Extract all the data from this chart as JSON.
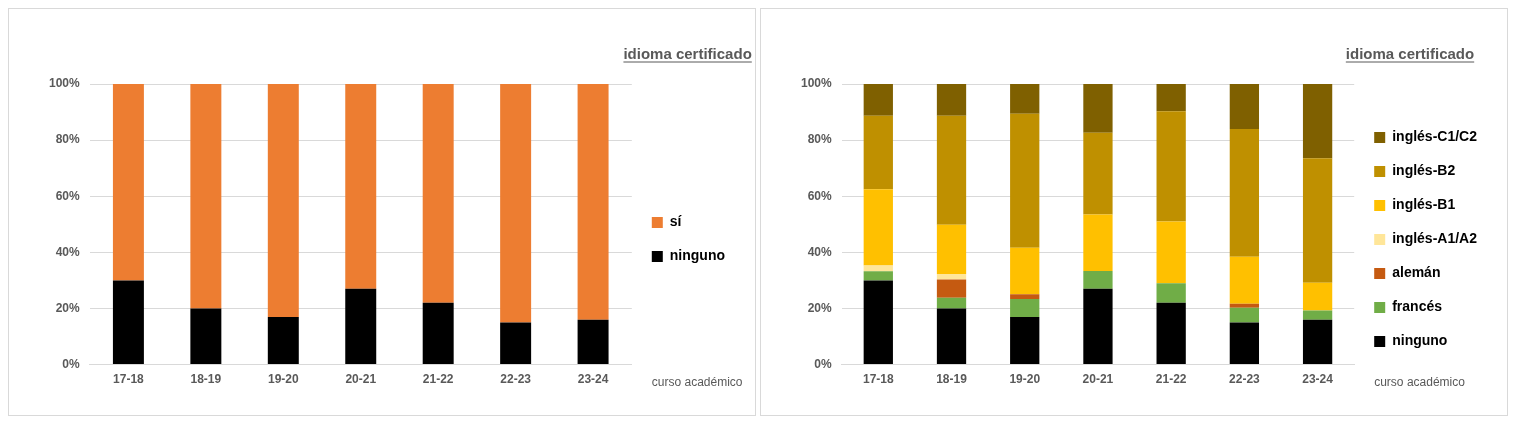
{
  "chart_data": [
    {
      "type": "bar",
      "title": "idioma certificado",
      "xlabel": "curso académico",
      "categories": [
        "17-18",
        "18-19",
        "19-20",
        "20-21",
        "21-22",
        "22-23",
        "23-24"
      ],
      "stacked": true,
      "ylim": [
        0,
        100
      ],
      "yticks": [
        {
          "value": 0,
          "label": "0%"
        },
        {
          "value": 20,
          "label": "20%"
        },
        {
          "value": 40,
          "label": "40%"
        },
        {
          "value": 60,
          "label": "60%"
        },
        {
          "value": 80,
          "label": "80%"
        },
        {
          "value": 100,
          "label": "100%"
        }
      ],
      "grid": "y",
      "legend": "right",
      "series": [
        {
          "name": "ninguno",
          "color": "#000000",
          "values": [
            30,
            20,
            17,
            27,
            22,
            15,
            16
          ]
        },
        {
          "name": "sí",
          "color": "#ed7d31",
          "values": [
            70,
            80,
            83,
            73,
            78,
            85,
            84
          ]
        }
      ]
    },
    {
      "type": "bar",
      "title": "idioma certificado",
      "xlabel": "curso académico",
      "categories": [
        "17-18",
        "18-19",
        "19-20",
        "20-21",
        "21-22",
        "22-23",
        "23-24"
      ],
      "stacked": true,
      "ylim": [
        0,
        100
      ],
      "yticks": [
        {
          "value": 0,
          "label": "0%"
        },
        {
          "value": 20,
          "label": "20%"
        },
        {
          "value": 40,
          "label": "40%"
        },
        {
          "value": 60,
          "label": "60%"
        },
        {
          "value": 80,
          "label": "80%"
        },
        {
          "value": 100,
          "label": "100%"
        }
      ],
      "grid": "y",
      "legend": "right",
      "series": [
        {
          "name": "ninguno",
          "color": "#000000",
          "values": [
            30,
            20,
            17,
            27,
            22,
            15,
            16
          ]
        },
        {
          "name": "francés",
          "color": "#70ad47",
          "values": [
            3.3,
            3.8,
            6.4,
            6.4,
            7,
            5.3,
            3.3
          ]
        },
        {
          "name": "alemán",
          "color": "#c55a11",
          "values": [
            0,
            6.5,
            1.7,
            0,
            0,
            1.4,
            0
          ]
        },
        {
          "name": "inglés-A1/A2",
          "color": "#ffe699",
          "values": [
            2,
            2,
            0,
            0,
            0,
            0,
            0
          ]
        },
        {
          "name": "inglés-B1",
          "color": "#ffc000",
          "values": [
            27.2,
            17.5,
            16.5,
            20.1,
            22,
            16.7,
            9.9
          ]
        },
        {
          "name": "inglés-B2",
          "color": "#bf9000",
          "values": [
            26.2,
            38.9,
            47.8,
            29.1,
            39.3,
            45.6,
            44.3
          ]
        },
        {
          "name": "inglés-C1/C2",
          "color": "#7f6000",
          "values": [
            11.3,
            11.3,
            10.6,
            17.4,
            9.7,
            16,
            26.5
          ]
        }
      ]
    }
  ]
}
